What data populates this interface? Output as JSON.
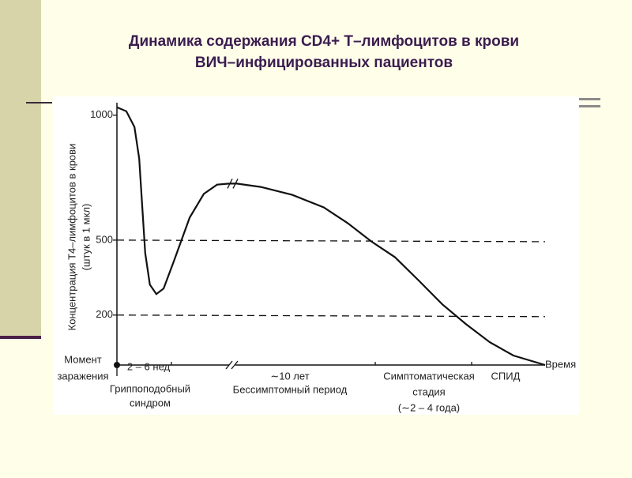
{
  "chart_data": {
    "type": "line",
    "title": [
      "Динамика содержания CD4+ Т–лимфоцитов в крови",
      "ВИЧ–инфицированных пациентов"
    ],
    "y_label": [
      "Концентрация Т4–лимфоцитов в крови",
      "(штук в 1 мкл)"
    ],
    "x_label": "Время",
    "ylim": [
      0,
      1050
    ],
    "yticks": [
      200,
      500,
      1000
    ],
    "xlim": [
      0,
      100
    ],
    "hlines": [
      500,
      200
    ],
    "color": "#111111",
    "x": [
      0,
      2.2,
      4.1,
      5.2,
      5.9,
      6.6,
      7.7,
      9.2,
      10.9,
      13.3,
      17.0,
      20.3,
      23.4,
      26.2,
      28.0,
      33.6,
      41.0,
      48.3,
      53.9,
      59.4,
      64.9,
      70.5,
      76.0,
      81.5,
      87.1,
      92.6,
      100
    ],
    "values": [
      1032,
      1016,
      953,
      826,
      637,
      448,
      322,
      284,
      306,
      416,
      590,
      685,
      722,
      726,
      726,
      713,
      681,
      631,
      568,
      495,
      432,
      338,
      243,
      164,
      91,
      38,
      0
    ],
    "annotations": [
      {
        "lines": [
          "Момент",
          "заражения"
        ]
      },
      {
        "lines": [
          "2 – 6 нед"
        ]
      },
      {
        "lines": [
          "Гриппоподобный",
          "синдром"
        ]
      },
      {
        "lines": [
          "∼10 лет",
          "Бессимптомный период"
        ]
      },
      {
        "lines": [
          "Симптоматическая",
          "стадия",
          "(∼2 – 4 года)"
        ]
      },
      {
        "lines": [
          "СПИД"
        ]
      }
    ]
  }
}
